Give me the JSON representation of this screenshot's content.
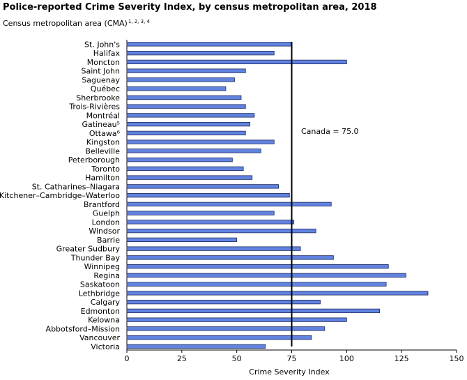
{
  "title": "Police-reported Crime Severity Index, by census metropolitan area, 2018",
  "subtitle": "Census metropolitan area (CMA)",
  "subtitle_notes": "1, 2, 3, 4",
  "colors": {
    "bar_fill": "#6183e0",
    "bar_stroke": "#1f2a5a",
    "reference_line": "#000000"
  },
  "chart_data": {
    "type": "bar",
    "orientation": "horizontal",
    "title": "Police-reported Crime Severity Index, by census metropolitan area, 2018",
    "xlabel": "Crime Severity Index",
    "ylabel": "Census metropolitan area (CMA)",
    "xlim": [
      0,
      150
    ],
    "xticks": [
      "0",
      "25",
      "50",
      "75",
      "100",
      "125",
      "150"
    ],
    "grid": false,
    "reference_line": {
      "value": 75.0,
      "label": "Canada = 75.0"
    },
    "categories": [
      "St. John's",
      "Halifax",
      "Moncton",
      "Saint John",
      "Saguenay",
      "Québec",
      "Sherbrooke",
      "Trois-Rivières",
      "Montréal",
      "Gatineau⁵",
      "Ottawa⁶",
      "Kingston",
      "Belleville",
      "Peterborough",
      "Toronto",
      "Hamilton",
      "St. Catharines–Niagara",
      "Kitchener–Cambridge–Waterloo",
      "Brantford",
      "Guelph",
      "London",
      "Windsor",
      "Barrie",
      "Greater Sudbury",
      "Thunder Bay",
      "Winnipeg",
      "Regina",
      "Saskatoon",
      "Lethbridge",
      "Calgary",
      "Edmonton",
      "Kelowna",
      "Abbotsford–Mission",
      "Vancouver",
      "Victoria"
    ],
    "values": [
      75,
      67,
      100,
      54,
      49,
      45,
      52,
      54,
      58,
      56,
      54,
      67,
      61,
      48,
      53,
      57,
      69,
      74,
      93,
      67,
      76,
      86,
      50,
      79,
      94,
      119,
      127,
      118,
      137,
      88,
      115,
      100,
      90,
      84,
      63
    ]
  }
}
